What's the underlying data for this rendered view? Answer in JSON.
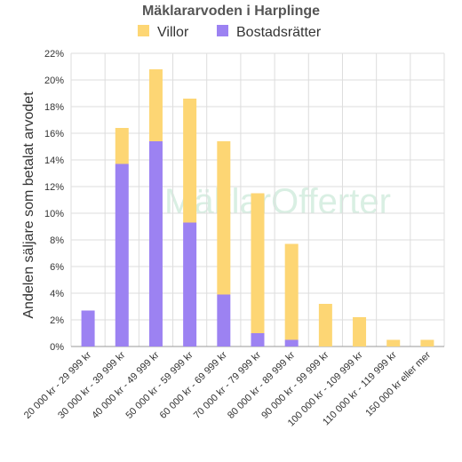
{
  "chart_data": {
    "type": "bar",
    "stacked": true,
    "title": "Mäklararvoden i Harplinge",
    "ylabel": "Andelen säljare som betalat arvodet",
    "xlabel": "",
    "ylim": [
      0,
      22
    ],
    "yticks": [
      "0%",
      "2%",
      "4%",
      "6%",
      "8%",
      "10%",
      "12%",
      "14%",
      "16%",
      "18%",
      "20%",
      "22%"
    ],
    "ytick_values": [
      0,
      2,
      4,
      6,
      8,
      10,
      12,
      14,
      16,
      18,
      20,
      22
    ],
    "grid": true,
    "legend": "top",
    "categories": [
      "20 000 kr - 29 999 kr",
      "30 000 kr - 39 999 kr",
      "40 000 kr - 49 999 kr",
      "50 000 kr - 59 999 kr",
      "60 000 kr - 69 999 kr",
      "70 000 kr - 79 999 kr",
      "80 000 kr - 89 999 kr",
      "90 000 kr - 99 999 kr",
      "100 000 kr - 109 999 kr",
      "110 000 kr - 119 999 kr",
      "150 000 kr eller mer"
    ],
    "series": [
      {
        "name": "Bostadsrätter",
        "color": "#9c82f2",
        "values": [
          2.7,
          13.7,
          15.4,
          9.3,
          3.9,
          1.0,
          0.5,
          0,
          0,
          0,
          0
        ]
      },
      {
        "name": "Villor",
        "color": "#fdd674",
        "values": [
          0,
          2.7,
          5.4,
          9.3,
          11.5,
          10.5,
          7.2,
          3.2,
          2.2,
          0.5,
          0.5
        ]
      }
    ],
    "legend_order": [
      "Villor",
      "Bostadsrätter"
    ],
    "watermark": "MäklarOfferter"
  }
}
